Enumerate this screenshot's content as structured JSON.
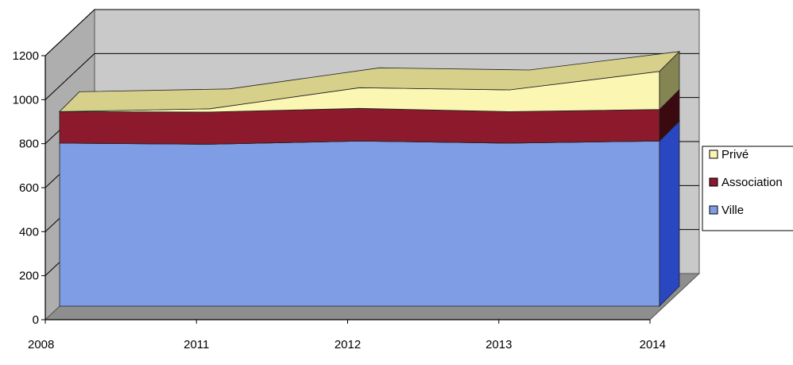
{
  "chart_data": {
    "type": "area",
    "stacked": true,
    "style": "3d",
    "categories": [
      "2008",
      "2011",
      "2012",
      "2013",
      "2014"
    ],
    "series": [
      {
        "name": "Ville",
        "values": [
          750,
          745,
          760,
          750,
          760
        ],
        "color": "#7f9de5"
      },
      {
        "name": "Association",
        "values": [
          145,
          148,
          150,
          145,
          145
        ],
        "color": "#8c1a2c"
      },
      {
        "name": "Privé",
        "values": [
          0,
          15,
          95,
          100,
          175
        ],
        "color": "#fbf7b3"
      }
    ],
    "y_ticks": [
      "0",
      "200",
      "400",
      "600",
      "800",
      "1000",
      "1200"
    ],
    "ylim": [
      0,
      1200
    ],
    "grid": true,
    "legend_position": "right",
    "colors": {
      "wall": "#c9c9c9",
      "floor": "#8e8e8e",
      "gridline": "#000000",
      "prive_top": "#d6d08a",
      "association_top": "#5a0d18",
      "ville_side": "#2a47c2",
      "prive_side": "#858553",
      "association_side": "#3a0a10"
    }
  }
}
